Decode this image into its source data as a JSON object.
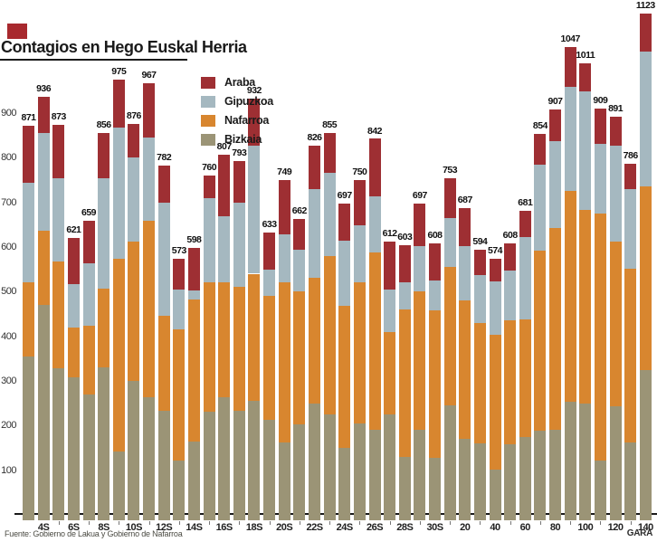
{
  "page": {
    "title": "Contagios en Hego Euskal Herria",
    "source": "Fuente: Gobierno de Lakua y Gobierno de Nafarroa",
    "brand": "GARA"
  },
  "colors": {
    "araba": "#9e2f33",
    "gipuzkoa": "#a5b8c0",
    "nafarroa": "#d8862f",
    "bizkaia": "#9b9476",
    "axis": "#1a1a1a",
    "accent_square": "#a8292e",
    "background": "#ffffff"
  },
  "chart_data": {
    "type": "bar",
    "stacked": true,
    "title": "Contagios en Hego Euskal Herria",
    "xlabel": "",
    "ylabel": "",
    "ylim": [
      0,
      1150
    ],
    "y_ticks": [
      100,
      200,
      300,
      400,
      500,
      600,
      700,
      800,
      900
    ],
    "grid": false,
    "legend_position": "top-inside",
    "legend": [
      "Araba",
      "Gipuzkoa",
      "Nafarroa",
      "Bizkaia"
    ],
    "stack_order_bottom_to_top": [
      "bizkaia",
      "nafarroa",
      "gipuzkoa",
      "araba"
    ],
    "x_tick_labels": [
      "4S",
      "6S",
      "8S",
      "10S",
      "12S",
      "14S",
      "16S",
      "18S",
      "20S",
      "22S",
      "24S",
      "26S",
      "28S",
      "30S",
      "20",
      "40",
      "60",
      "80",
      "100",
      "120",
      "140"
    ],
    "x_tick_note": "one label under every second bar",
    "bars": [
      {
        "total": 871,
        "bizkaia": 355,
        "nafarroa": 165,
        "gipuzkoa": 223,
        "araba": 128,
        "x_label": ""
      },
      {
        "total": 936,
        "bizkaia": 470,
        "nafarroa": 167,
        "gipuzkoa": 218,
        "araba": 81,
        "x_label": "4S"
      },
      {
        "total": 873,
        "bizkaia": 328,
        "nafarroa": 239,
        "gipuzkoa": 186,
        "araba": 120,
        "x_label": ""
      },
      {
        "total": 621,
        "bizkaia": 308,
        "nafarroa": 111,
        "gipuzkoa": 97,
        "araba": 105,
        "x_label": "6S"
      },
      {
        "total": 659,
        "bizkaia": 270,
        "nafarroa": 153,
        "gipuzkoa": 140,
        "araba": 96,
        "x_label": ""
      },
      {
        "total": 856,
        "bizkaia": 330,
        "nafarroa": 177,
        "gipuzkoa": 246,
        "araba": 103,
        "x_label": "8S"
      },
      {
        "total": 975,
        "bizkaia": 142,
        "nafarroa": 432,
        "gipuzkoa": 294,
        "araba": 107,
        "x_label": ""
      },
      {
        "total": 876,
        "bizkaia": 300,
        "nafarroa": 312,
        "gipuzkoa": 188,
        "araba": 76,
        "x_label": "10S"
      },
      {
        "total": 967,
        "bizkaia": 263,
        "nafarroa": 396,
        "gipuzkoa": 186,
        "araba": 122,
        "x_label": ""
      },
      {
        "total": 782,
        "bizkaia": 233,
        "nafarroa": 212,
        "gipuzkoa": 254,
        "araba": 83,
        "x_label": "12S"
      },
      {
        "total": 573,
        "bizkaia": 122,
        "nafarroa": 293,
        "gipuzkoa": 90,
        "araba": 68,
        "x_label": ""
      },
      {
        "total": 598,
        "bizkaia": 164,
        "nafarroa": 319,
        "gipuzkoa": 20,
        "araba": 95,
        "x_label": "14S"
      },
      {
        "total": 760,
        "bizkaia": 231,
        "nafarroa": 289,
        "gipuzkoa": 189,
        "araba": 51,
        "x_label": ""
      },
      {
        "total": 807,
        "bizkaia": 264,
        "nafarroa": 256,
        "gipuzkoa": 149,
        "araba": 138,
        "x_label": "16S"
      },
      {
        "total": 793,
        "bizkaia": 232,
        "nafarroa": 278,
        "gipuzkoa": 189,
        "araba": 94,
        "x_label": ""
      },
      {
        "total": 932,
        "bizkaia": 256,
        "nafarroa": 284,
        "gipuzkoa": 287,
        "araba": 105,
        "x_label": "18S"
      },
      {
        "total": 633,
        "bizkaia": 213,
        "nafarroa": 277,
        "gipuzkoa": 60,
        "araba": 83,
        "x_label": ""
      },
      {
        "total": 749,
        "bizkaia": 162,
        "nafarroa": 358,
        "gipuzkoa": 108,
        "araba": 121,
        "x_label": "20S"
      },
      {
        "total": 662,
        "bizkaia": 203,
        "nafarroa": 297,
        "gipuzkoa": 94,
        "araba": 68,
        "x_label": ""
      },
      {
        "total": 826,
        "bizkaia": 250,
        "nafarroa": 280,
        "gipuzkoa": 199,
        "araba": 97,
        "x_label": "22S"
      },
      {
        "total": 855,
        "bizkaia": 225,
        "nafarroa": 355,
        "gipuzkoa": 186,
        "araba": 89,
        "x_label": ""
      },
      {
        "total": 697,
        "bizkaia": 150,
        "nafarroa": 319,
        "gipuzkoa": 145,
        "araba": 83,
        "x_label": "24S"
      },
      {
        "total": 750,
        "bizkaia": 204,
        "nafarroa": 316,
        "gipuzkoa": 129,
        "araba": 101,
        "x_label": ""
      },
      {
        "total": 842,
        "bizkaia": 190,
        "nafarroa": 398,
        "gipuzkoa": 126,
        "araba": 128,
        "x_label": "26S"
      },
      {
        "total": 612,
        "bizkaia": 225,
        "nafarroa": 185,
        "gipuzkoa": 95,
        "araba": 107,
        "x_label": ""
      },
      {
        "total": 603,
        "bizkaia": 130,
        "nafarroa": 330,
        "gipuzkoa": 60,
        "araba": 83,
        "x_label": "28S"
      },
      {
        "total": 697,
        "bizkaia": 190,
        "nafarroa": 310,
        "gipuzkoa": 101,
        "araba": 96,
        "x_label": ""
      },
      {
        "total": 608,
        "bizkaia": 128,
        "nafarroa": 330,
        "gipuzkoa": 67,
        "araba": 83,
        "x_label": "30S"
      },
      {
        "total": 753,
        "bizkaia": 245,
        "nafarroa": 310,
        "gipuzkoa": 110,
        "araba": 88,
        "x_label": ""
      },
      {
        "total": 687,
        "bizkaia": 170,
        "nafarroa": 310,
        "gipuzkoa": 121,
        "araba": 86,
        "x_label": "20"
      },
      {
        "total": 594,
        "bizkaia": 160,
        "nafarroa": 270,
        "gipuzkoa": 107,
        "araba": 57,
        "x_label": ""
      },
      {
        "total": 574,
        "bizkaia": 101,
        "nafarroa": 302,
        "gipuzkoa": 120,
        "araba": 51,
        "x_label": "40"
      },
      {
        "total": 608,
        "bizkaia": 158,
        "nafarroa": 277,
        "gipuzkoa": 112,
        "araba": 61,
        "x_label": ""
      },
      {
        "total": 681,
        "bizkaia": 174,
        "nafarroa": 264,
        "gipuzkoa": 184,
        "araba": 59,
        "x_label": "60"
      },
      {
        "total": 854,
        "bizkaia": 189,
        "nafarroa": 402,
        "gipuzkoa": 193,
        "araba": 70,
        "x_label": ""
      },
      {
        "total": 907,
        "bizkaia": 190,
        "nafarroa": 452,
        "gipuzkoa": 195,
        "araba": 70,
        "x_label": "80"
      },
      {
        "total": 1047,
        "bizkaia": 253,
        "nafarroa": 472,
        "gipuzkoa": 234,
        "araba": 88,
        "x_label": ""
      },
      {
        "total": 1011,
        "bizkaia": 250,
        "nafarroa": 433,
        "gipuzkoa": 266,
        "araba": 62,
        "x_label": "100"
      },
      {
        "total": 909,
        "bizkaia": 122,
        "nafarroa": 553,
        "gipuzkoa": 156,
        "araba": 78,
        "x_label": ""
      },
      {
        "total": 891,
        "bizkaia": 243,
        "nafarroa": 369,
        "gipuzkoa": 215,
        "araba": 64,
        "x_label": "120"
      },
      {
        "total": 786,
        "bizkaia": 162,
        "nafarroa": 389,
        "gipuzkoa": 178,
        "araba": 57,
        "x_label": ""
      },
      {
        "total": 1123,
        "bizkaia": 325,
        "nafarroa": 410,
        "gipuzkoa": 303,
        "araba": 85,
        "x_label": "140"
      }
    ]
  }
}
